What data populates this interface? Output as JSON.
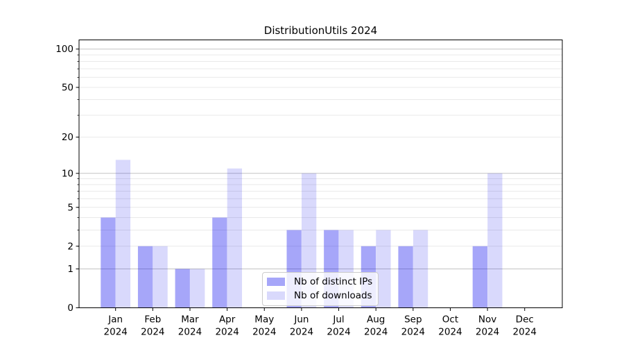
{
  "chart_data": {
    "type": "bar",
    "title": "DistributionUtils 2024",
    "categories": [
      "Jan 2024",
      "Feb 2024",
      "Mar 2024",
      "Apr 2024",
      "May 2024",
      "Jun 2024",
      "Jul 2024",
      "Aug 2024",
      "Sep 2024",
      "Oct 2024",
      "Nov 2024",
      "Dec 2024"
    ],
    "series": [
      {
        "name": "Nb of distinct IPs",
        "color": "rgba(0,0,238,0.35)",
        "values": [
          4,
          2,
          1,
          4,
          0,
          3,
          3,
          2,
          2,
          0,
          2,
          0
        ]
      },
      {
        "name": "Nb of downloads",
        "color": "rgba(0,0,238,0.15)",
        "values": [
          13,
          2,
          1,
          11,
          0,
          10,
          3,
          3,
          3,
          0,
          10,
          0
        ]
      }
    ],
    "yscale": "log1p",
    "ylim": [
      0,
      100
    ],
    "yticks": [
      0,
      1,
      2,
      5,
      10,
      20,
      50,
      100
    ],
    "ytick_major": [
      1,
      10,
      100
    ],
    "ytick_minor": [
      2,
      3,
      4,
      5,
      6,
      7,
      8,
      9,
      20,
      30,
      40,
      50,
      60,
      70,
      80,
      90
    ],
    "grid": true,
    "legend_position": "inside-bottom-center",
    "grid_major_color": "#c3c3c3",
    "grid_minor_color": "#e9e9e9"
  }
}
